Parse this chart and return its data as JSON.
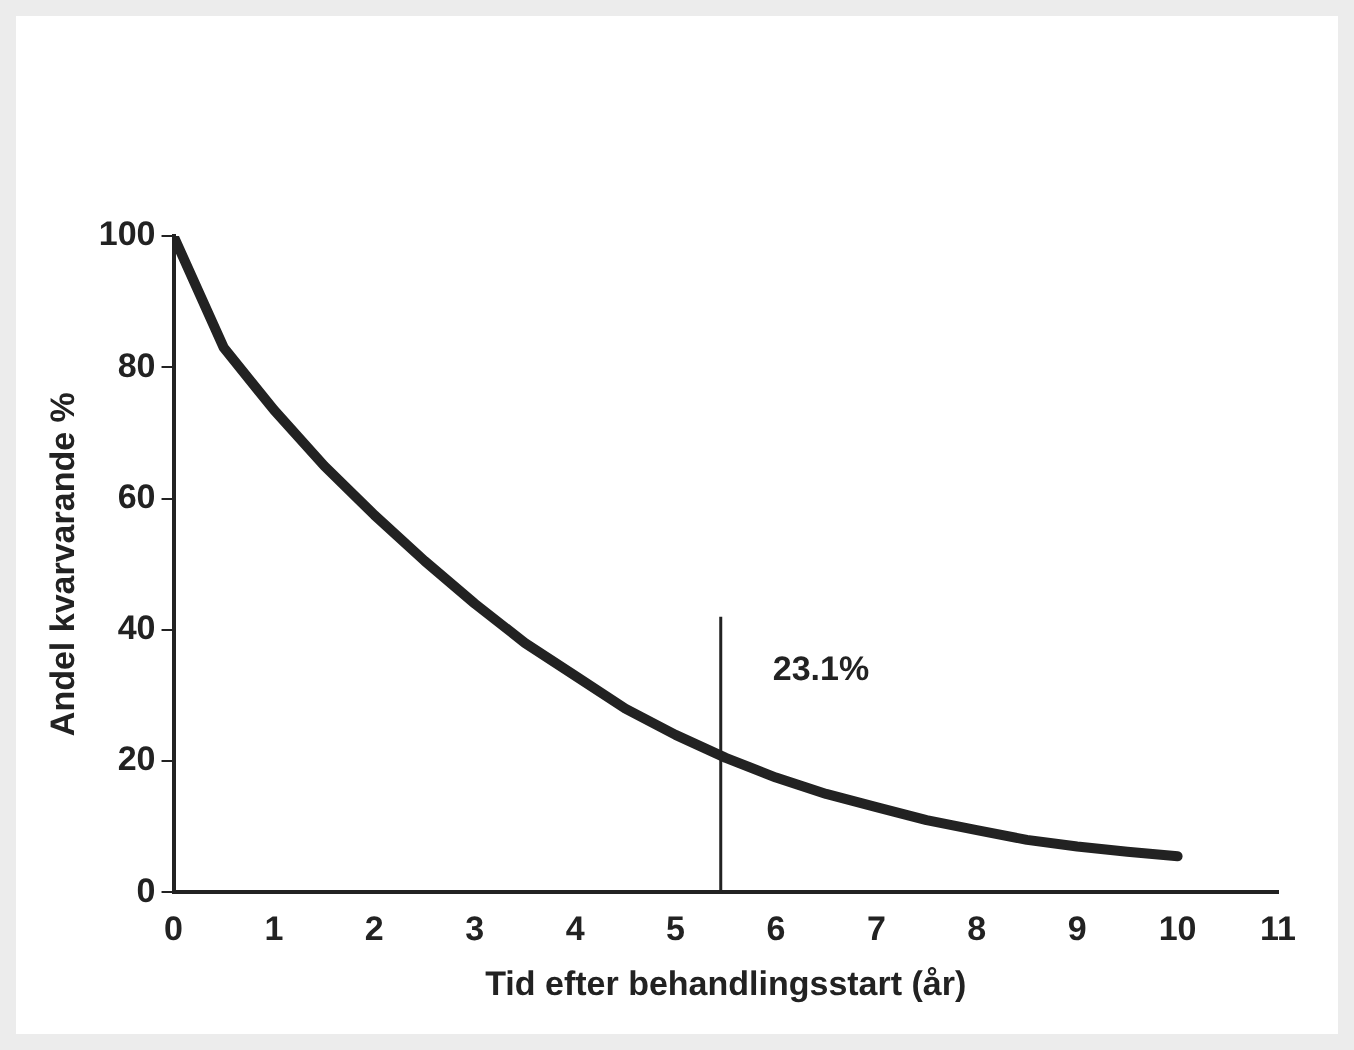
{
  "chart_data": {
    "type": "line",
    "xlabel": "Tid efter behandlingsstart (år)",
    "ylabel": "Andel kvarvarande %",
    "x": [
      0,
      0.5,
      1,
      1.5,
      2,
      2.5,
      3,
      3.5,
      4,
      4.5,
      5,
      5.5,
      6,
      6.5,
      7,
      7.5,
      8,
      8.5,
      9,
      9.5,
      10
    ],
    "values": [
      100,
      83,
      73.5,
      65,
      57.5,
      50.5,
      44,
      38,
      33,
      28,
      24,
      20.5,
      17.5,
      15,
      13,
      11,
      9.5,
      8,
      7,
      6.2,
      5.5
    ],
    "color": "#222222",
    "xlim": [
      0,
      11
    ],
    "xticks": [
      0,
      1,
      2,
      3,
      4,
      5,
      6,
      7,
      8,
      9,
      10,
      11
    ],
    "ylim": [
      0,
      100
    ],
    "yticks": [
      0,
      20,
      40,
      60,
      80,
      100
    ],
    "grid": false,
    "legend": false,
    "marker": "none",
    "line_style": "solid",
    "ref_lines": [
      {
        "axis": "x",
        "value": 5.45,
        "color": "#222222"
      }
    ],
    "annotations": [
      "23.1%"
    ]
  }
}
